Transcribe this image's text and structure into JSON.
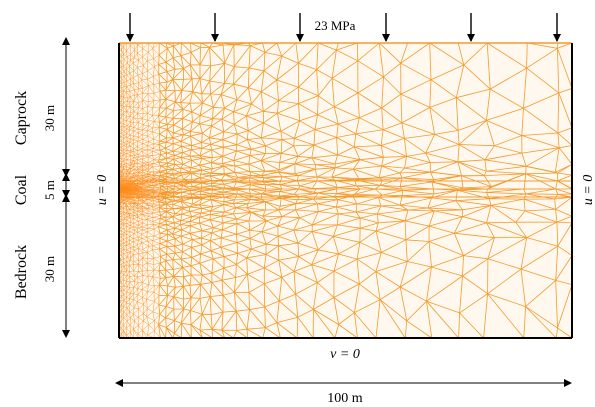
{
  "load": {
    "label": "23 MPa",
    "arrow_count": 6
  },
  "layers": [
    {
      "name": "Caprock",
      "thickness": "30 m"
    },
    {
      "name": "Coal",
      "thickness": "5 m"
    },
    {
      "name": "Bedrock",
      "thickness": "30 m"
    }
  ],
  "boundary": {
    "left": "u = 0",
    "right": "u = 0",
    "bottom": "v = 0"
  },
  "width_label": "100 m",
  "colors": {
    "mesh": "#f39a2c",
    "mesh_dense": "#ff8c1a",
    "line": "#000000"
  }
}
